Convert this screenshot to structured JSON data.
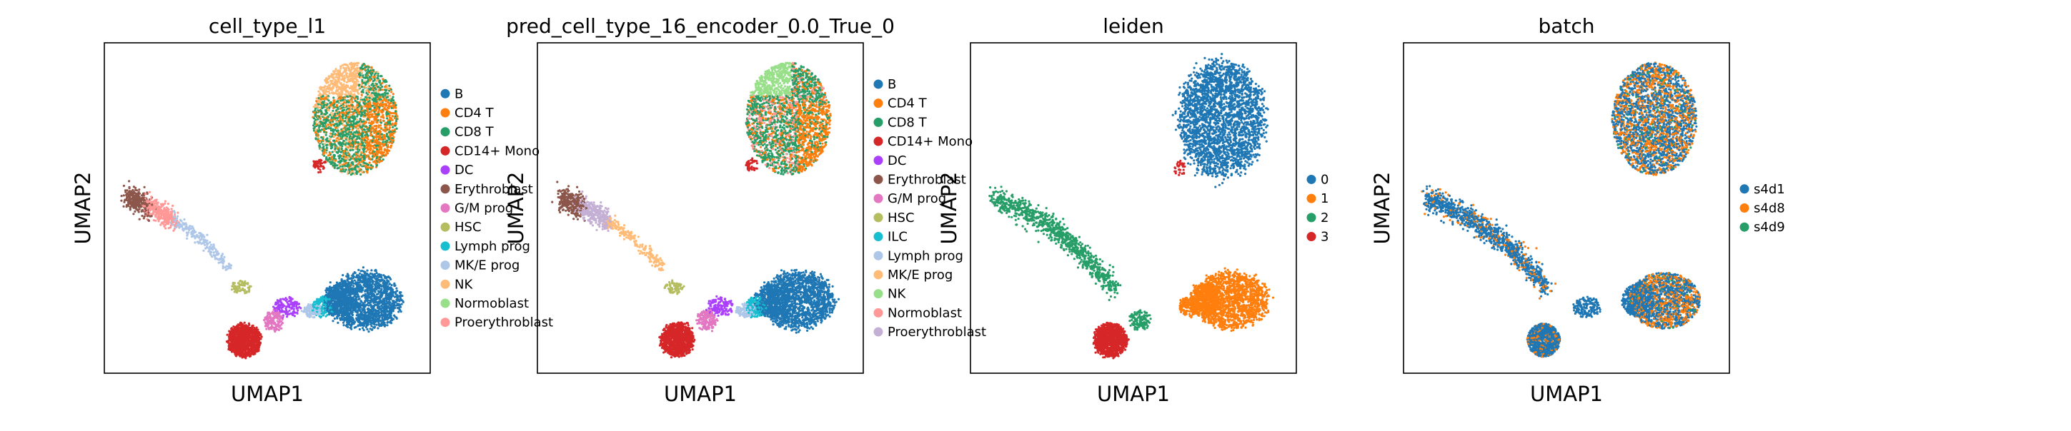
{
  "chart_data": [
    {
      "type": "scatter",
      "title": "cell_type_l1",
      "xlabel": "UMAP1",
      "ylabel": "UMAP2",
      "grid": false,
      "legend_position": "right",
      "series": [
        {
          "name": "B",
          "color": "#1f77b4"
        },
        {
          "name": "CD4 T",
          "color": "#ff7f0e"
        },
        {
          "name": "CD8 T",
          "color": "#279e68"
        },
        {
          "name": "CD14+ Mono",
          "color": "#d62728"
        },
        {
          "name": "DC",
          "color": "#aa40fc"
        },
        {
          "name": "Erythroblast",
          "color": "#8c564b"
        },
        {
          "name": "G/M prog",
          "color": "#e377c2"
        },
        {
          "name": "HSC",
          "color": "#b5bd61"
        },
        {
          "name": "Lymph prog",
          "color": "#17becf"
        },
        {
          "name": "MK/E prog",
          "color": "#aec7e8"
        },
        {
          "name": "NK",
          "color": "#ffbb78"
        },
        {
          "name": "Normoblast",
          "color": "#98df8a"
        },
        {
          "name": "Proerythroblast",
          "color": "#ff9896"
        }
      ]
    },
    {
      "type": "scatter",
      "title": "pred_cell_type_16_encoder_0.0_True_0",
      "xlabel": "UMAP1",
      "ylabel": "UMAP2",
      "grid": false,
      "legend_position": "right",
      "series": [
        {
          "name": "B",
          "color": "#1f77b4"
        },
        {
          "name": "CD4 T",
          "color": "#ff7f0e"
        },
        {
          "name": "CD8 T",
          "color": "#279e68"
        },
        {
          "name": "CD14+ Mono",
          "color": "#d62728"
        },
        {
          "name": "DC",
          "color": "#aa40fc"
        },
        {
          "name": "Erythroblast",
          "color": "#8c564b"
        },
        {
          "name": "G/M prog",
          "color": "#e377c2"
        },
        {
          "name": "HSC",
          "color": "#b5bd61"
        },
        {
          "name": "ILC",
          "color": "#17becf"
        },
        {
          "name": "Lymph prog",
          "color": "#aec7e8"
        },
        {
          "name": "MK/E prog",
          "color": "#ffbb78"
        },
        {
          "name": "NK",
          "color": "#98df8a"
        },
        {
          "name": "Normoblast",
          "color": "#ff9896"
        },
        {
          "name": "Proerythroblast",
          "color": "#c5b0d5"
        }
      ]
    },
    {
      "type": "scatter",
      "title": "leiden",
      "xlabel": "UMAP1",
      "ylabel": "UMAP2",
      "grid": false,
      "legend_position": "right",
      "series": [
        {
          "name": "0",
          "color": "#1f77b4"
        },
        {
          "name": "1",
          "color": "#ff7f0e"
        },
        {
          "name": "2",
          "color": "#279e68"
        },
        {
          "name": "3",
          "color": "#d62728"
        }
      ]
    },
    {
      "type": "scatter",
      "title": "batch",
      "xlabel": "UMAP1",
      "ylabel": "UMAP2",
      "grid": false,
      "legend_position": "right",
      "series": [
        {
          "name": "s4d1",
          "color": "#1f77b4"
        },
        {
          "name": "s4d8",
          "color": "#ff7f0e"
        },
        {
          "name": "s4d9",
          "color": "#279e68"
        }
      ]
    }
  ]
}
